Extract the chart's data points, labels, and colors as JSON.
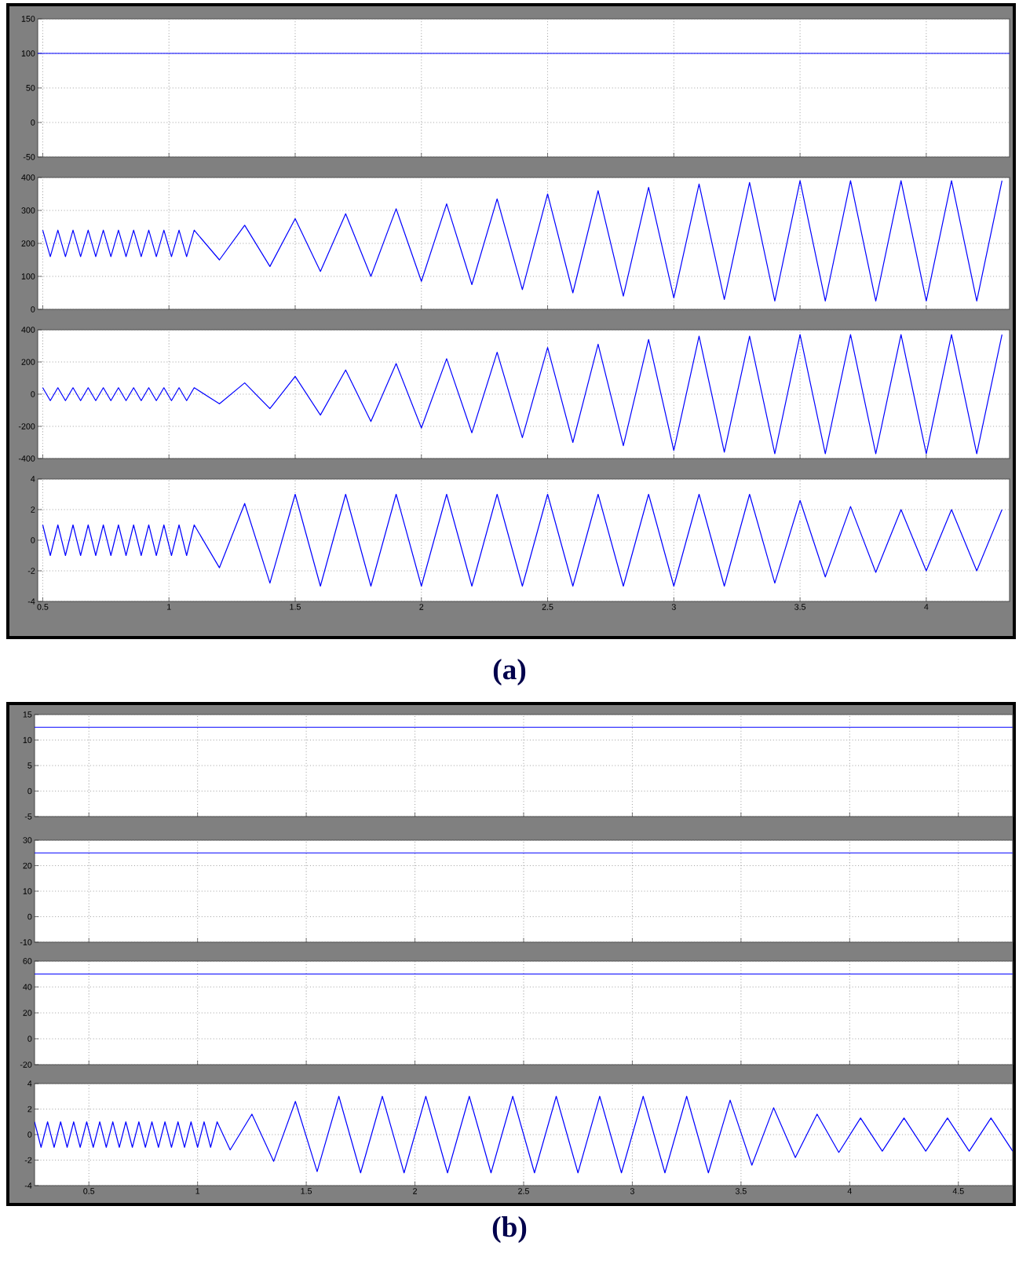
{
  "chart_data": [
    {
      "type": "line",
      "color": "#0000ff",
      "grid": true,
      "tick_labels": "y",
      "xlim": [
        0.48,
        4.33
      ],
      "xticks": [
        0.5,
        1,
        1.5,
        2,
        2.5,
        3,
        3.5,
        4
      ],
      "ylim": [
        -50,
        150
      ],
      "yticks": [
        -50,
        0,
        50,
        100,
        150
      ],
      "x": [
        0.48,
        4.33
      ],
      "values": [
        100,
        100
      ]
    },
    {
      "type": "line",
      "color": "#0000ff",
      "grid": true,
      "tick_labels": "y",
      "xlim": [
        0.48,
        4.33
      ],
      "xticks": [
        0.5,
        1,
        1.5,
        2,
        2.5,
        3,
        3.5,
        4
      ],
      "ylim": [
        0,
        400
      ],
      "yticks": [
        0,
        100,
        200,
        300,
        400
      ],
      "x": [
        0.5,
        0.53,
        0.56,
        0.59,
        0.62,
        0.65,
        0.68,
        0.71,
        0.74,
        0.77,
        0.8,
        0.83,
        0.86,
        0.89,
        0.92,
        0.95,
        0.98,
        1.01,
        1.04,
        1.07,
        1.1,
        1.2,
        1.3,
        1.4,
        1.5,
        1.6,
        1.7,
        1.8,
        1.9,
        2.0,
        2.1,
        2.2,
        2.3,
        2.4,
        2.5,
        2.6,
        2.7,
        2.8,
        2.9,
        3.0,
        3.1,
        3.2,
        3.3,
        3.4,
        3.5,
        3.6,
        3.7,
        3.8,
        3.9,
        4.0,
        4.1,
        4.2,
        4.3
      ],
      "values": [
        240,
        160,
        240,
        160,
        240,
        160,
        240,
        160,
        240,
        160,
        240,
        160,
        240,
        160,
        240,
        160,
        240,
        160,
        240,
        160,
        240,
        150,
        255,
        130,
        275,
        115,
        290,
        100,
        305,
        85,
        320,
        75,
        335,
        60,
        350,
        50,
        360,
        40,
        370,
        35,
        380,
        30,
        385,
        25,
        390,
        25,
        390,
        25,
        390,
        25,
        390,
        25,
        390
      ]
    },
    {
      "type": "line",
      "color": "#0000ff",
      "grid": true,
      "tick_labels": "y",
      "xlim": [
        0.48,
        4.33
      ],
      "xticks": [
        0.5,
        1,
        1.5,
        2,
        2.5,
        3,
        3.5,
        4
      ],
      "ylim": [
        -400,
        400
      ],
      "yticks": [
        -400,
        -200,
        0,
        200,
        400
      ],
      "x": [
        0.5,
        0.53,
        0.56,
        0.59,
        0.62,
        0.65,
        0.68,
        0.71,
        0.74,
        0.77,
        0.8,
        0.83,
        0.86,
        0.89,
        0.92,
        0.95,
        0.98,
        1.01,
        1.04,
        1.07,
        1.1,
        1.2,
        1.3,
        1.4,
        1.5,
        1.6,
        1.7,
        1.8,
        1.9,
        2.0,
        2.1,
        2.2,
        2.3,
        2.4,
        2.5,
        2.6,
        2.7,
        2.8,
        2.9,
        3.0,
        3.1,
        3.2,
        3.3,
        3.4,
        3.5,
        3.6,
        3.7,
        3.8,
        3.9,
        4.0,
        4.1,
        4.2,
        4.3
      ],
      "values": [
        40,
        -40,
        40,
        -40,
        40,
        -40,
        40,
        -40,
        40,
        -40,
        40,
        -40,
        40,
        -40,
        40,
        -40,
        40,
        -40,
        40,
        -40,
        40,
        -60,
        70,
        -90,
        110,
        -130,
        150,
        -170,
        190,
        -210,
        220,
        -240,
        260,
        -270,
        290,
        -300,
        310,
        -320,
        340,
        -350,
        360,
        -360,
        360,
        -370,
        370,
        -370,
        370,
        -370,
        370,
        -370,
        370,
        -370,
        370
      ]
    },
    {
      "type": "line",
      "color": "#0000ff",
      "grid": true,
      "xlim": [
        0.48,
        4.33
      ],
      "xticks": [
        0.5,
        1,
        1.5,
        2,
        2.5,
        3,
        3.5,
        4
      ],
      "ylim": [
        -4,
        4
      ],
      "yticks": [
        -4,
        -2,
        0,
        2,
        4
      ],
      "annotations": [
        "(a)"
      ],
      "x": [
        0.5,
        0.53,
        0.56,
        0.59,
        0.62,
        0.65,
        0.68,
        0.71,
        0.74,
        0.77,
        0.8,
        0.83,
        0.86,
        0.89,
        0.92,
        0.95,
        0.98,
        1.01,
        1.04,
        1.07,
        1.1,
        1.2,
        1.3,
        1.4,
        1.5,
        1.6,
        1.7,
        1.8,
        1.9,
        2.0,
        2.1,
        2.2,
        2.3,
        2.4,
        2.5,
        2.6,
        2.7,
        2.8,
        2.9,
        3.0,
        3.1,
        3.2,
        3.3,
        3.4,
        3.5,
        3.6,
        3.7,
        3.8,
        3.9,
        4.0,
        4.1,
        4.2,
        4.3
      ],
      "values": [
        1,
        -1,
        1,
        -1,
        1,
        -1,
        1,
        -1,
        1,
        -1,
        1,
        -1,
        1,
        -1,
        1,
        -1,
        1,
        -1,
        1,
        -1,
        1,
        -1.8,
        2.4,
        -2.8,
        3,
        -3,
        3,
        -3,
        3,
        -3,
        3,
        -3,
        3,
        -3,
        3,
        -3,
        3,
        -3,
        3,
        -3,
        3,
        -3,
        3,
        -2.8,
        2.6,
        -2.4,
        2.2,
        -2.1,
        2,
        -2,
        2,
        -2,
        2
      ]
    },
    {
      "type": "line",
      "color": "#0000ff",
      "grid": true,
      "tick_labels": "y",
      "xlim": [
        0.25,
        4.75
      ],
      "xticks": [
        0.5,
        1,
        1.5,
        2,
        2.5,
        3,
        3.5,
        4,
        4.5
      ],
      "ylim": [
        -5,
        15
      ],
      "yticks": [
        -5,
        0,
        5,
        10,
        15
      ],
      "x": [
        0.25,
        4.75
      ],
      "values": [
        12.5,
        12.5
      ]
    },
    {
      "type": "line",
      "color": "#0000ff",
      "grid": true,
      "tick_labels": "y",
      "xlim": [
        0.25,
        4.75
      ],
      "xticks": [
        0.5,
        1,
        1.5,
        2,
        2.5,
        3,
        3.5,
        4,
        4.5
      ],
      "ylim": [
        -10,
        30
      ],
      "yticks": [
        -10,
        0,
        10,
        20,
        30
      ],
      "x": [
        0.25,
        4.75
      ],
      "values": [
        25,
        25
      ]
    },
    {
      "type": "line",
      "color": "#0000ff",
      "grid": true,
      "tick_labels": "y",
      "xlim": [
        0.25,
        4.75
      ],
      "xticks": [
        0.5,
        1,
        1.5,
        2,
        2.5,
        3,
        3.5,
        4,
        4.5
      ],
      "ylim": [
        -20,
        60
      ],
      "yticks": [
        -20,
        0,
        20,
        40,
        60
      ],
      "x": [
        0.25,
        4.75
      ],
      "values": [
        50,
        50
      ]
    },
    {
      "type": "line",
      "color": "#0000ff",
      "grid": true,
      "xlim": [
        0.25,
        4.75
      ],
      "xticks": [
        0.5,
        1,
        1.5,
        2,
        2.5,
        3,
        3.5,
        4,
        4.5
      ],
      "ylim": [
        -4,
        4
      ],
      "yticks": [
        -4,
        -2,
        0,
        2,
        4
      ],
      "annotations": [
        "(b)"
      ],
      "x": [
        0.25,
        0.28,
        0.31,
        0.34,
        0.37,
        0.4,
        0.43,
        0.46,
        0.49,
        0.52,
        0.55,
        0.58,
        0.61,
        0.64,
        0.67,
        0.7,
        0.73,
        0.76,
        0.79,
        0.82,
        0.85,
        0.88,
        0.91,
        0.94,
        0.97,
        1.0,
        1.03,
        1.06,
        1.09,
        1.15,
        1.25,
        1.35,
        1.45,
        1.55,
        1.65,
        1.75,
        1.85,
        1.95,
        2.05,
        2.15,
        2.25,
        2.35,
        2.45,
        2.55,
        2.65,
        2.75,
        2.85,
        2.95,
        3.05,
        3.15,
        3.25,
        3.35,
        3.45,
        3.55,
        3.65,
        3.75,
        3.85,
        3.95,
        4.05,
        4.15,
        4.25,
        4.35,
        4.45,
        4.55,
        4.65,
        4.75
      ],
      "values": [
        1,
        -1,
        1,
        -1,
        1,
        -1,
        1,
        -1,
        1,
        -1,
        1,
        -1,
        1,
        -1,
        1,
        -1,
        1,
        -1,
        1,
        -1,
        1,
        -1,
        1,
        -1,
        1,
        -1,
        1,
        -1,
        1,
        -1.2,
        1.6,
        -2.1,
        2.6,
        -2.9,
        3,
        -3,
        3,
        -3,
        3,
        -3,
        3,
        -3,
        3,
        -3,
        3,
        -3,
        3,
        -3,
        3,
        -3,
        3,
        -3,
        2.7,
        -2.4,
        2.1,
        -1.8,
        1.6,
        -1.4,
        1.3,
        -1.3,
        1.3,
        -1.3,
        1.3,
        -1.3,
        1.3,
        -1.3
      ]
    }
  ]
}
